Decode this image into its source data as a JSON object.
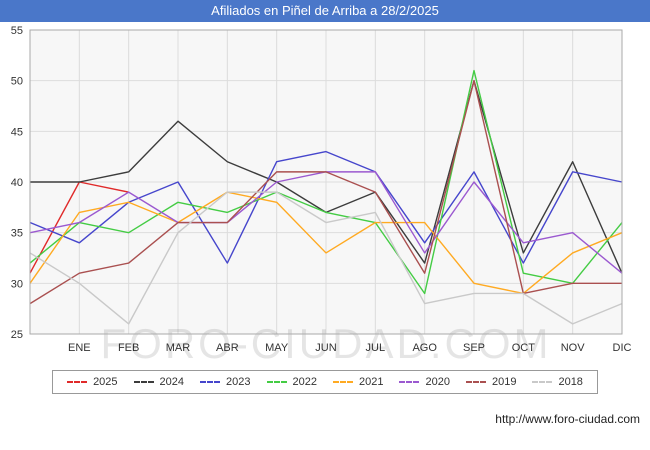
{
  "title": "Afiliados en Piñel de Arriba a 28/2/2025",
  "watermark": "FORO-CIUDAD.COM",
  "footer": {
    "url": "http://www.foro-ciudad.com"
  },
  "colors": {
    "titlebar": "#4a77c9",
    "plot_background": "#f7f7f7",
    "grid": "#dcdcdc",
    "axis_border": "#aaaaaa",
    "tick_text": "#333333"
  },
  "chart_data": {
    "type": "line",
    "title": "Afiliados en Piñel de Arriba a 28/2/2025",
    "xlabel": "",
    "ylabel": "",
    "ylim": [
      25,
      55
    ],
    "yticks": [
      25,
      30,
      35,
      40,
      45,
      50,
      55
    ],
    "grid": true,
    "legend_position": "bottom",
    "categories": [
      "",
      "ENE",
      "FEB",
      "MAR",
      "ABR",
      "MAY",
      "JUN",
      "JUL",
      "AGO",
      "SEP",
      "OCT",
      "NOV",
      "DIC"
    ],
    "series": [
      {
        "name": "2025",
        "color": "#e02a2a",
        "values": [
          31,
          40,
          39,
          null,
          null,
          null,
          null,
          null,
          null,
          null,
          null,
          null,
          null
        ]
      },
      {
        "name": "2024",
        "color": "#3c3c3c",
        "values": [
          40,
          40,
          41,
          46,
          42,
          40,
          37,
          39,
          32,
          50,
          33,
          42,
          31
        ]
      },
      {
        "name": "2023",
        "color": "#4646cc",
        "values": [
          36,
          34,
          38,
          40,
          32,
          42,
          43,
          41,
          34,
          41,
          32,
          41,
          40
        ]
      },
      {
        "name": "2022",
        "color": "#44cc44",
        "values": [
          32,
          36,
          35,
          38,
          37,
          39,
          37,
          36,
          29,
          51,
          31,
          30,
          36
        ]
      },
      {
        "name": "2021",
        "color": "#ffaa22",
        "values": [
          30,
          37,
          38,
          36,
          39,
          38,
          33,
          36,
          36,
          30,
          29,
          33,
          35
        ]
      },
      {
        "name": "2020",
        "color": "#9b59d0",
        "values": [
          35,
          36,
          39,
          36,
          36,
          40,
          41,
          41,
          33,
          40,
          34,
          35,
          31
        ]
      },
      {
        "name": "2019",
        "color": "#aa5050",
        "values": [
          28,
          31,
          32,
          36,
          36,
          41,
          41,
          39,
          31,
          50,
          29,
          30,
          30
        ]
      },
      {
        "name": "2018",
        "color": "#c9c9c9",
        "values": [
          33,
          30,
          26,
          35,
          39,
          39,
          36,
          37,
          28,
          29,
          29,
          26,
          28
        ]
      }
    ]
  }
}
